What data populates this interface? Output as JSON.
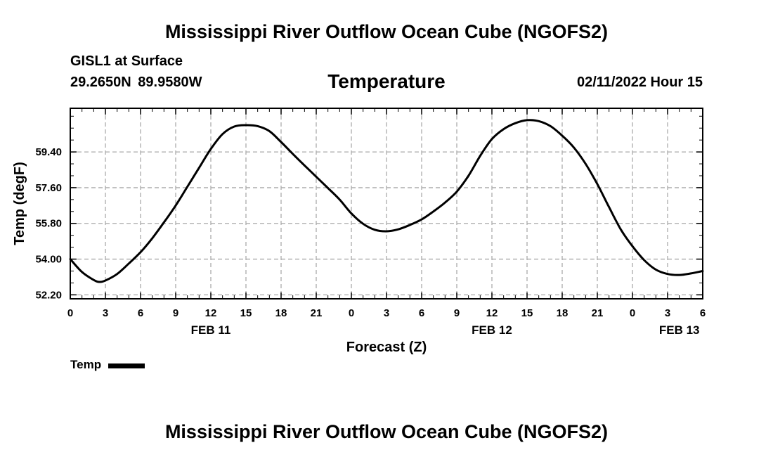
{
  "header": {
    "title": "Mississippi River Outflow Ocean Cube (NGOFS2)",
    "station": "GISL1 at Surface",
    "coordinates": "29.2650N  89.9580W",
    "variable_title": "Temperature",
    "date_stamp": "02/11/2022 Hour 15"
  },
  "footer": {
    "title": "Mississippi River Outflow Ocean Cube (NGOFS2)"
  },
  "legend": {
    "label": "Temp",
    "color": "#000000"
  },
  "chart_data": {
    "type": "line",
    "xlabel": "Forecast (Z)",
    "ylabel": "Temp (degF)",
    "ylim": [
      52.0,
      61.6
    ],
    "xlim": [
      0,
      54
    ],
    "grid": true,
    "y_ticks": [
      "52.20",
      "54.00",
      "55.80",
      "57.60",
      "59.40"
    ],
    "x_ticks": [
      {
        "hour": 0,
        "label": "0"
      },
      {
        "hour": 3,
        "label": "3"
      },
      {
        "hour": 6,
        "label": "6"
      },
      {
        "hour": 9,
        "label": "9"
      },
      {
        "hour": 12,
        "label": "12"
      },
      {
        "hour": 15,
        "label": "15"
      },
      {
        "hour": 18,
        "label": "18"
      },
      {
        "hour": 21,
        "label": "21"
      },
      {
        "hour": 24,
        "label": "0"
      },
      {
        "hour": 27,
        "label": "3"
      },
      {
        "hour": 30,
        "label": "6"
      },
      {
        "hour": 33,
        "label": "9"
      },
      {
        "hour": 36,
        "label": "12"
      },
      {
        "hour": 39,
        "label": "15"
      },
      {
        "hour": 42,
        "label": "18"
      },
      {
        "hour": 45,
        "label": "21"
      },
      {
        "hour": 48,
        "label": "0"
      },
      {
        "hour": 51,
        "label": "3"
      },
      {
        "hour": 54,
        "label": "6"
      }
    ],
    "day_labels": [
      {
        "hour": 12,
        "label": "FEB 11"
      },
      {
        "hour": 36,
        "label": "FEB 12"
      },
      {
        "hour": 52,
        "label": "FEB 13"
      }
    ],
    "series": [
      {
        "name": "Temp",
        "color": "#000000",
        "x": [
          0,
          1,
          2,
          2.5,
          3,
          4,
          5,
          6,
          7,
          8,
          9,
          10,
          11,
          12,
          13,
          14,
          15,
          16,
          17,
          18,
          19,
          20,
          21,
          22,
          23,
          24,
          25,
          26,
          27,
          28,
          29,
          30,
          31,
          32,
          33,
          34,
          35,
          36,
          37,
          38,
          39,
          40,
          41,
          42,
          43,
          44,
          45,
          46,
          47,
          48,
          49,
          50,
          51,
          52,
          53,
          54
        ],
        "y": [
          54.0,
          53.35,
          52.95,
          52.85,
          52.92,
          53.25,
          53.78,
          54.35,
          55.05,
          55.85,
          56.7,
          57.65,
          58.6,
          59.55,
          60.3,
          60.68,
          60.75,
          60.7,
          60.45,
          59.9,
          59.3,
          58.72,
          58.15,
          57.58,
          57.0,
          56.3,
          55.78,
          55.48,
          55.4,
          55.5,
          55.72,
          56.0,
          56.4,
          56.85,
          57.4,
          58.2,
          59.2,
          60.05,
          60.55,
          60.85,
          61.0,
          60.95,
          60.7,
          60.22,
          59.62,
          58.8,
          57.78,
          56.62,
          55.5,
          54.65,
          53.95,
          53.47,
          53.25,
          53.2,
          53.28,
          53.4
        ]
      }
    ]
  }
}
